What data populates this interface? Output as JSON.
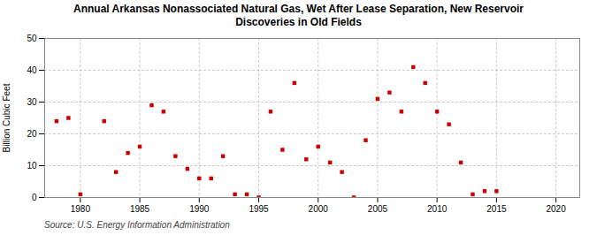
{
  "chart_data": {
    "type": "scatter",
    "title": "Annual Arkansas Nonassociated Natural Gas, Wet After Lease Separation, New Reservoir\nDiscoveries in Old Fields",
    "ylabel": "Billion Cubic Feet",
    "source": "Source: U.S. Energy Information Administration",
    "color": "#cc0000",
    "marker": "square",
    "grid": true,
    "xlim": [
      1977,
      2022
    ],
    "ylim": [
      0,
      50
    ],
    "xticks": [
      1980,
      1985,
      1990,
      1995,
      2000,
      2005,
      2010,
      2015,
      2020
    ],
    "yticks": [
      0,
      10,
      20,
      30,
      40,
      50
    ],
    "x": [
      1978,
      1979,
      1980,
      1982,
      1983,
      1984,
      1985,
      1986,
      1987,
      1988,
      1989,
      1990,
      1991,
      1992,
      1993,
      1994,
      1995,
      1996,
      1997,
      1998,
      1999,
      2000,
      2001,
      2002,
      2003,
      2004,
      2005,
      2006,
      2007,
      2008,
      2009,
      2010,
      2011,
      2012,
      2013,
      2014,
      2015
    ],
    "values": [
      24,
      25,
      1,
      24,
      8,
      14,
      16,
      29,
      27,
      13,
      9,
      6,
      6,
      13,
      1,
      1,
      0,
      27,
      15,
      36,
      12,
      16,
      11,
      8,
      0,
      18,
      31,
      33,
      27,
      41,
      36,
      27,
      23,
      11,
      1,
      2,
      2
    ]
  }
}
